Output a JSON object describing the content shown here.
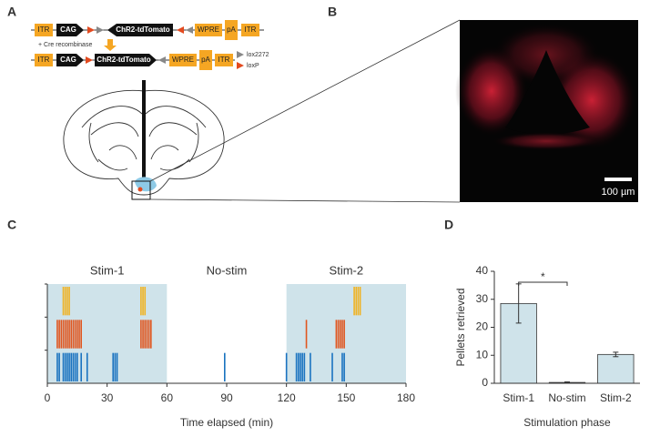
{
  "panel_labels": [
    "A",
    "B",
    "C",
    "D"
  ],
  "diagram": {
    "top_construct": [
      "ITR",
      "CAG",
      "ChR2-tdTomato",
      "WPRE",
      "pA",
      "ITR"
    ],
    "recombinase": "+ Cre recombinase",
    "bottom_construct": [
      "ITR",
      "CAG",
      "ChR2-tdTomato",
      "WPRE",
      "pA",
      "ITR"
    ],
    "legend": [
      "lox2272",
      "loxP"
    ]
  },
  "image": {
    "scale_bar": "100 µm"
  },
  "chart_data": [
    {
      "type": "raster",
      "xlabel": "Time elapsed (min)",
      "xlim": [
        0,
        180
      ],
      "xticks": [
        0,
        30,
        60,
        90,
        120,
        150,
        180
      ],
      "phases": [
        {
          "name": "Stim-1",
          "start": 0,
          "end": 60,
          "shaded": true
        },
        {
          "name": "No-stim",
          "start": 60,
          "end": 120,
          "shaded": false
        },
        {
          "name": "Stim-2",
          "start": 120,
          "end": 180,
          "shaded": true
        }
      ],
      "shade_color": "#cfe3ea",
      "series": [
        {
          "color": "#f0b323",
          "values": [
            8,
            9,
            10,
            11,
            47,
            48,
            49,
            154,
            155,
            156,
            157
          ]
        },
        {
          "color": "#e0561f",
          "values": [
            5,
            6,
            7,
            8,
            9,
            10,
            11,
            12,
            13,
            14,
            15,
            16,
            17,
            47,
            48,
            49,
            50,
            51,
            52,
            130,
            145,
            146,
            147,
            148,
            149
          ]
        },
        {
          "color": "#1a73c0",
          "values": [
            5,
            6,
            8,
            9,
            10,
            11,
            12,
            13,
            14,
            15,
            17,
            20,
            33,
            34,
            35,
            89,
            120,
            125,
            126,
            127,
            128,
            129,
            132,
            143,
            148,
            149
          ]
        }
      ]
    },
    {
      "type": "bar",
      "xlabel": "Stimulation phase",
      "ylabel": "Pellets retrieved",
      "categories": [
        "Stim-1",
        "No-stim",
        "Stim-2"
      ],
      "values": [
        28.5,
        0.3,
        10.3
      ],
      "errors": [
        7,
        0.2,
        0.8
      ],
      "color": "#cfe3ea",
      "ylim": [
        0,
        40
      ],
      "yticks": [
        0,
        10,
        20,
        30,
        40
      ],
      "significance": {
        "label": "*",
        "from": 0,
        "to": 1
      }
    }
  ]
}
